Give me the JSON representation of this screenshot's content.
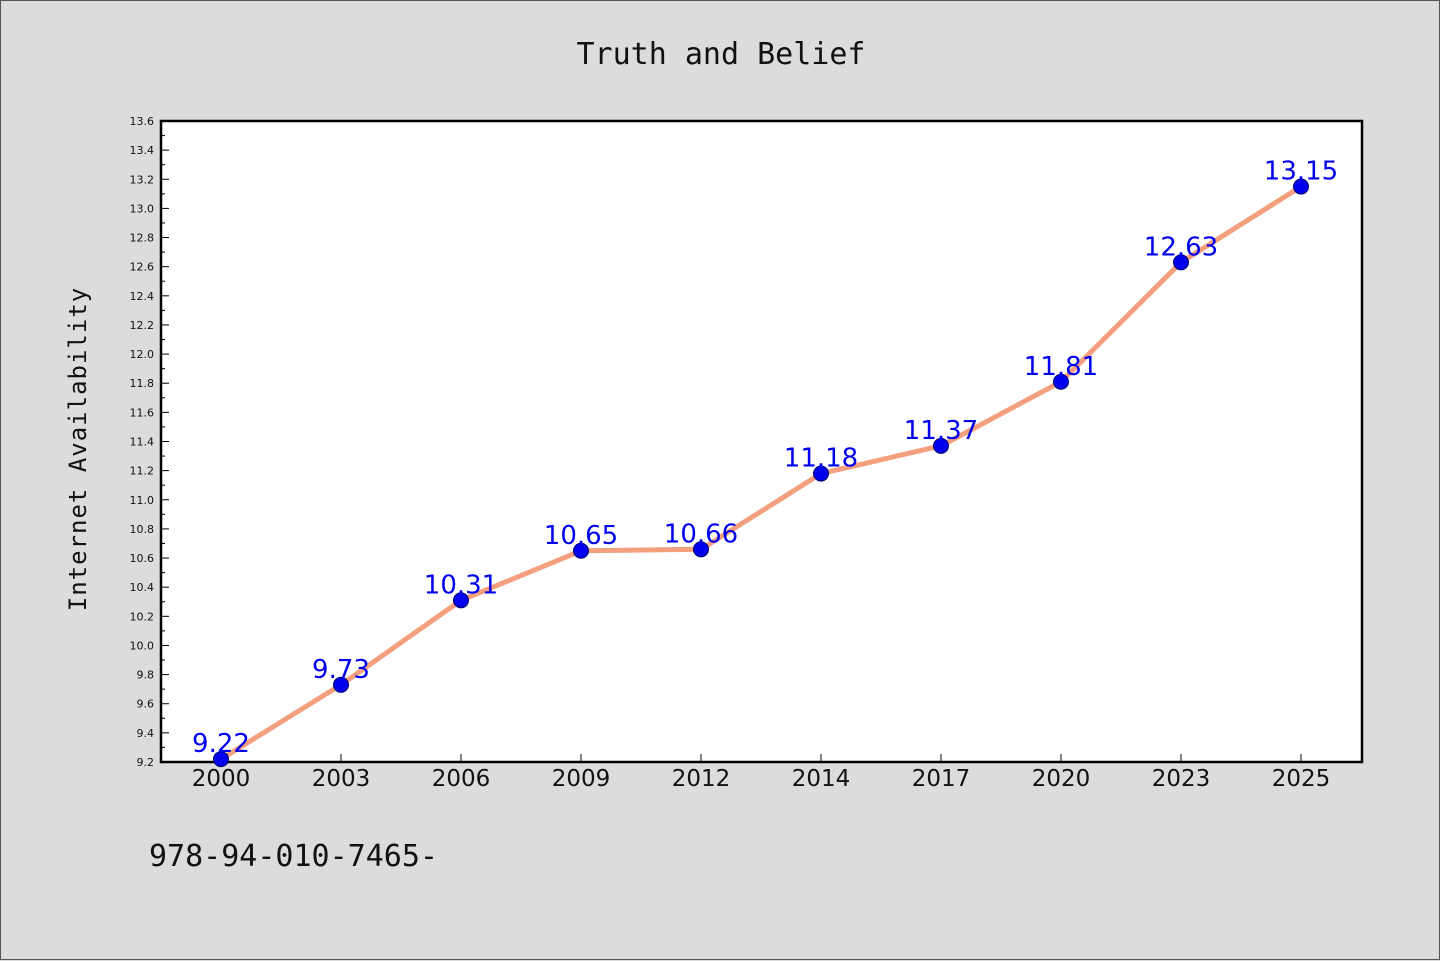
{
  "chart_data": {
    "type": "line",
    "title": "Truth and Belief",
    "xlabel": "",
    "ylabel": "Internet Availability",
    "categories": [
      "2000",
      "2003",
      "2006",
      "2009",
      "2012",
      "2014",
      "2017",
      "2020",
      "2023",
      "2025"
    ],
    "series": [
      {
        "values": [
          9.22,
          9.73,
          10.31,
          10.65,
          10.66,
          11.18,
          11.37,
          11.81,
          12.63,
          13.15
        ]
      }
    ],
    "ylim": [
      9.2,
      13.6
    ],
    "yticks": [
      "9.2",
      "9.4",
      "9.6",
      "9.8",
      "10.0",
      "10.2",
      "10.4",
      "10.6",
      "10.8",
      "11.0",
      "11.2",
      "11.4",
      "11.6",
      "11.8",
      "12.0",
      "12.2",
      "12.4",
      "12.6",
      "12.8",
      "13.0",
      "13.2",
      "13.4",
      "13.6"
    ],
    "grid": false,
    "legend": "none",
    "line_color": "#f4a07e",
    "marker_color": "#0000ee",
    "label_color": "#0000ee"
  },
  "footer_text": "978-94-010-7465-"
}
